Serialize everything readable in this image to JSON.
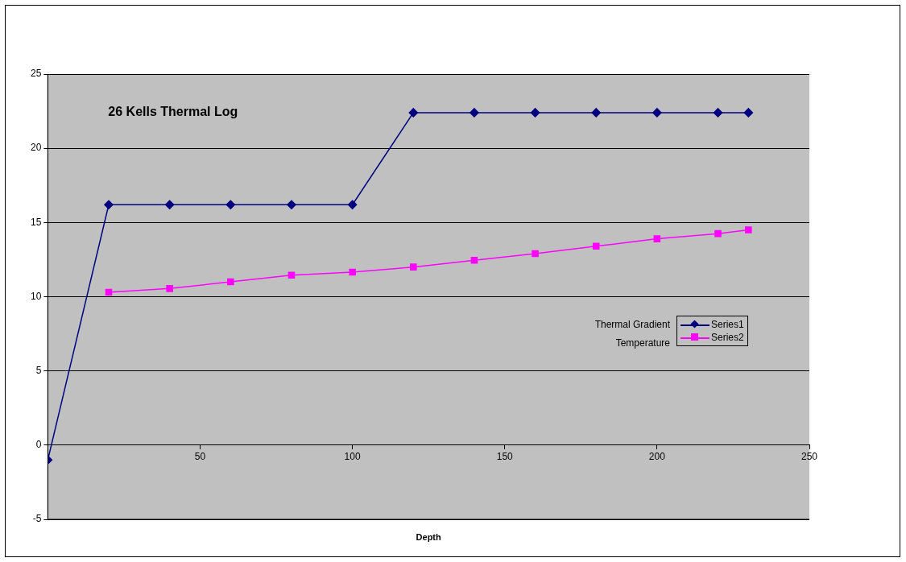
{
  "chart_data": {
    "type": "line",
    "title": "26 Kells Thermal Log",
    "xlabel": "Depth",
    "annotations": [
      "Thermal Gradient",
      "Temperature"
    ],
    "xlim": [
      0,
      250
    ],
    "xticks": [
      {
        "value": 0,
        "label": null
      },
      50,
      100,
      150,
      200,
      250
    ],
    "ylim": [
      -5,
      25
    ],
    "yticks": [
      -5,
      0,
      5,
      10,
      15,
      20,
      25
    ],
    "grid": "y",
    "legend": "right",
    "series": [
      {
        "name": "Series1",
        "color": "#000080",
        "marker": "diamond",
        "x": [
          0,
          20,
          40,
          60,
          80,
          100,
          120,
          140,
          160,
          180,
          200,
          220,
          230
        ],
        "values": [
          -1,
          16.2,
          16.2,
          16.2,
          16.2,
          16.2,
          22.4,
          22.4,
          22.4,
          22.4,
          22.4,
          22.4,
          22.4
        ]
      },
      {
        "name": "Series2",
        "color": "#ff00ff",
        "marker": "square",
        "x": [
          20,
          40,
          60,
          80,
          100,
          120,
          140,
          160,
          180,
          200,
          220,
          230
        ],
        "values": [
          10.3,
          10.55,
          11,
          11.45,
          11.65,
          12,
          12.45,
          12.9,
          13.4,
          13.9,
          14.25,
          14.5
        ]
      }
    ]
  }
}
